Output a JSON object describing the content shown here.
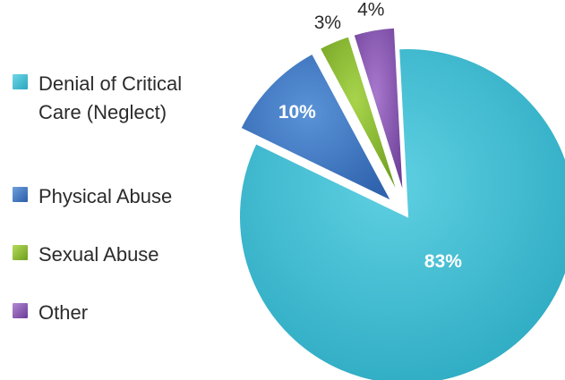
{
  "chart_data": {
    "type": "pie",
    "categories": [
      "Denial of Critical Care (Neglect)",
      "Physical Abuse",
      "Sexual Abuse",
      "Other"
    ],
    "values": [
      83,
      10,
      3,
      4
    ],
    "labels": [
      "83%",
      "10%",
      "3%",
      "4%"
    ],
    "colors": [
      "#3cbcd2",
      "#3b74c3",
      "#8dbd2f",
      "#8a55b2"
    ],
    "exploded": [
      false,
      true,
      true,
      true
    ],
    "legend_position": "left",
    "title": ""
  },
  "legend": {
    "items": [
      {
        "label": "Denial of Critical Care (Neglect)",
        "color": "#3cbcd2"
      },
      {
        "label": "Physical Abuse",
        "color": "#3b74c3"
      },
      {
        "label": "Sexual Abuse",
        "color": "#8dbd2f"
      },
      {
        "label": "Other",
        "color": "#8a55b2"
      }
    ]
  }
}
